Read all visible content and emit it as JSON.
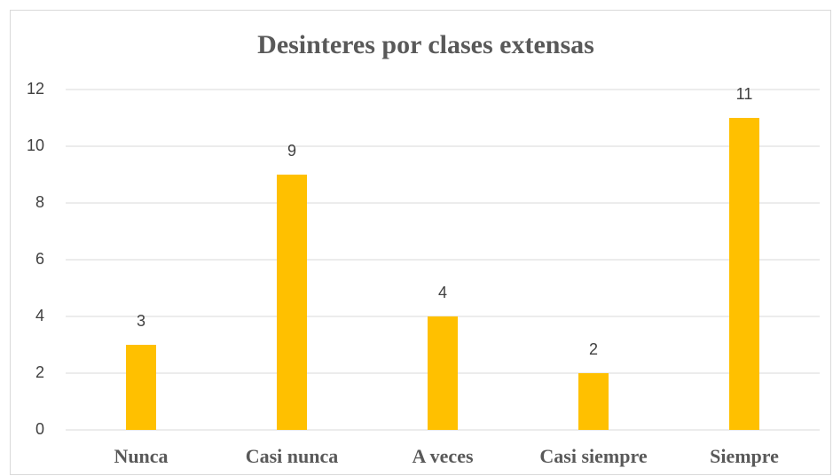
{
  "chart_data": {
    "type": "bar",
    "title": "Desinteres por clases extensas",
    "categories": [
      "Nunca",
      "Casi nunca",
      "A veces",
      "Casi siempre",
      "Siempre"
    ],
    "values": [
      3,
      9,
      4,
      2,
      11
    ],
    "color": "#ffc000",
    "ylim": [
      0,
      12
    ],
    "yticks": [
      0,
      2,
      4,
      6,
      8,
      10,
      12
    ],
    "grid": true,
    "data_labels": true
  }
}
